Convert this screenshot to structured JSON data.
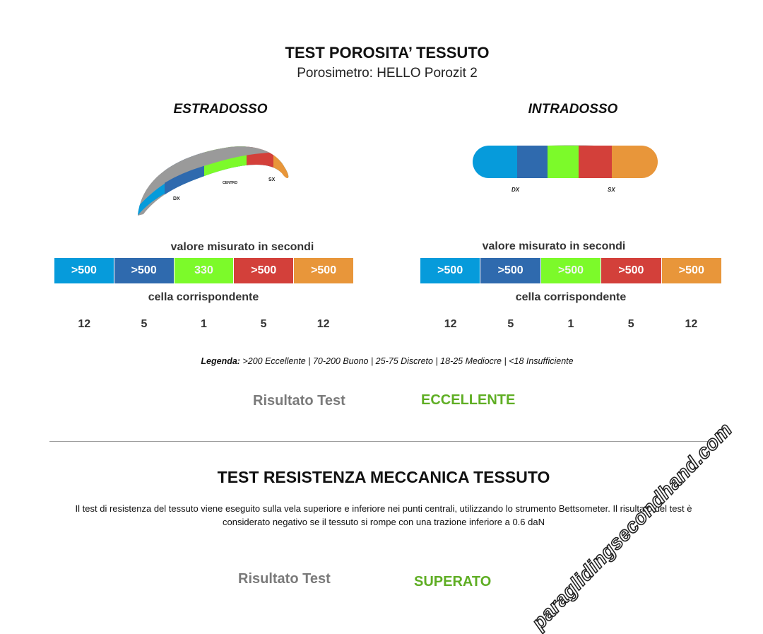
{
  "porosity": {
    "title": "TEST POROSITA’ TESSUTO",
    "subtitle": "Porosimetro: HELLO Porozit 2",
    "extrados": {
      "title": "ESTRADOSSO",
      "diagram_labels": {
        "dx": "DX",
        "centro": "CENTRO",
        "sx": "SX"
      },
      "measured_label": "valore misurato in secondi",
      "values": [
        ">500",
        ">500",
        "330",
        ">500",
        ">500"
      ],
      "cell_label": "cella corrispondente",
      "cells": [
        "12",
        "5",
        "1",
        "5",
        "12"
      ]
    },
    "intrados": {
      "title": "INTRADOSSO",
      "diagram_labels": {
        "dx": "DX",
        "sx": "SX"
      },
      "measured_label": "valore misurato in secondi",
      "values": [
        ">500",
        ">500",
        ">500",
        ">500",
        ">500"
      ],
      "cell_label": "cella corrispondente",
      "cells": [
        "12",
        "5",
        "1",
        "5",
        "12"
      ]
    },
    "segment_colors": [
      "#069bdb",
      "#2f6aae",
      "#7cfa2a",
      "#d3403a",
      "#e8963a"
    ],
    "legend_prefix": "Legenda:",
    "legend_text": ">200 Eccellente | 70-200 Buono | 25-75 Discreto | 18-25 Mediocre | <18 Insufficiente",
    "result_label": "Risultato Test",
    "result_value": "ECCELLENTE"
  },
  "mechanical": {
    "title": "TEST RESISTENZA MECCANICA TESSUTO",
    "description": "Il test di resistenza del tessuto viene eseguito sulla vela superiore e inferiore nei punti centrali, utilizzando lo strumento Bettsometer. Il risultato del test è considerato negativo se il tessuto si rompe con una trazione inferiore a 0.6 daN",
    "result_label": "Risultato Test",
    "result_value": "SUPERATO"
  },
  "watermark": "paraglidingsecondhand.com"
}
